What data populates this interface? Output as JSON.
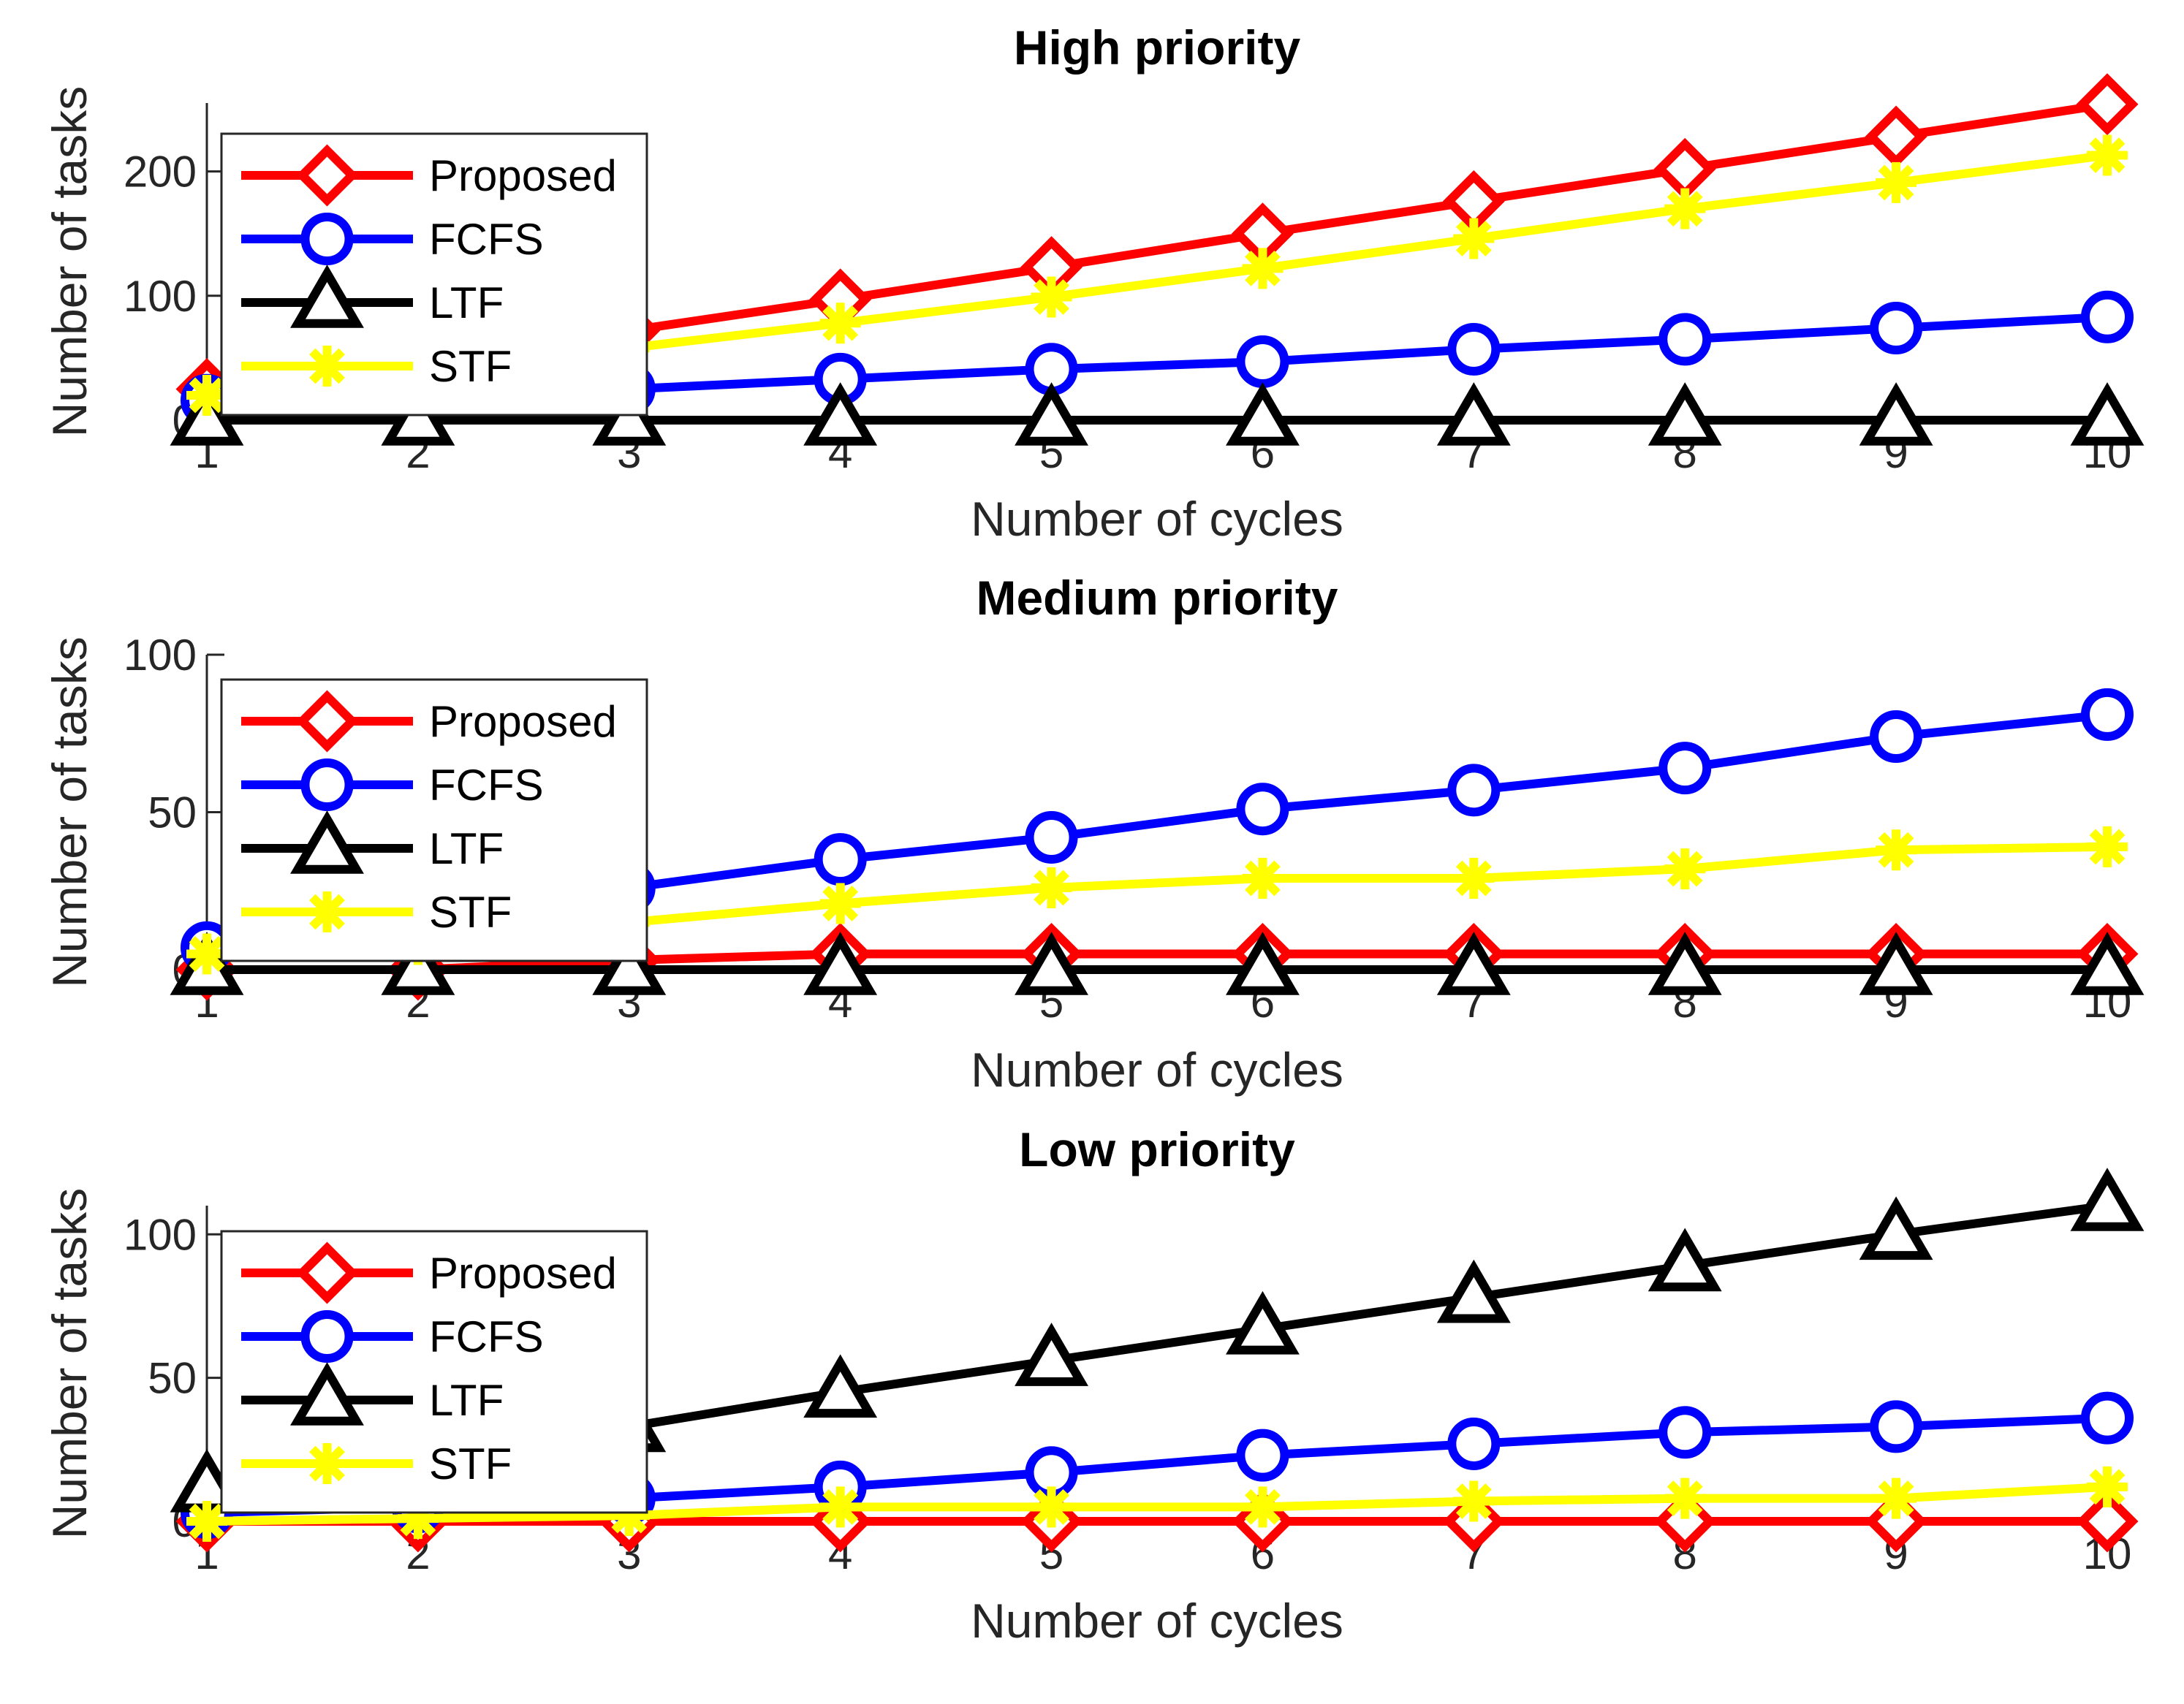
{
  "chart_data": [
    {
      "type": "line",
      "title": "High priority",
      "xlabel": "Number of cycles",
      "ylabel": "Number of tasks",
      "x": [
        1,
        2,
        3,
        4,
        5,
        6,
        7,
        8,
        9,
        10
      ],
      "xlim": [
        1,
        10
      ],
      "ylim": [
        0,
        255
      ],
      "yticks": [
        0,
        100,
        200
      ],
      "legend": "top-left",
      "series": [
        {
          "name": "Proposed",
          "color": "#ff0000",
          "marker": "diamond",
          "values": [
            25,
            50,
            72,
            97,
            123,
            150,
            176,
            202,
            228,
            254
          ]
        },
        {
          "name": "FCFS",
          "color": "#0000ff",
          "marker": "circle",
          "values": [
            16,
            20,
            25,
            33,
            41,
            47,
            57,
            65,
            74,
            83
          ]
        },
        {
          "name": "LTF",
          "color": "#000000",
          "marker": "triangle",
          "values": [
            0,
            0,
            0,
            0,
            0,
            0,
            0,
            0,
            0,
            0
          ]
        },
        {
          "name": "STF",
          "color": "#ffff00",
          "marker": "asterisk",
          "values": [
            20,
            40,
            58,
            78,
            99,
            122,
            146,
            170,
            191,
            213
          ]
        }
      ]
    },
    {
      "type": "line",
      "title": "Medium priority",
      "xlabel": "Number of cycles",
      "ylabel": "Number of tasks",
      "x": [
        1,
        2,
        3,
        4,
        5,
        6,
        7,
        8,
        9,
        10
      ],
      "xlim": [
        1,
        10
      ],
      "ylim": [
        0,
        100
      ],
      "yticks": [
        0,
        50,
        100
      ],
      "legend": "top-left",
      "series": [
        {
          "name": "Proposed",
          "color": "#ff0000",
          "marker": "diamond",
          "values": [
            0,
            0,
            3,
            5,
            5,
            5,
            5,
            5,
            5,
            5
          ]
        },
        {
          "name": "FCFS",
          "color": "#0000ff",
          "marker": "circle",
          "values": [
            7,
            15,
            26,
            35,
            42,
            51,
            57,
            64,
            74,
            81
          ]
        },
        {
          "name": "LTF",
          "color": "#000000",
          "marker": "triangle",
          "values": [
            0,
            0,
            0,
            0,
            0,
            0,
            0,
            0,
            0,
            0
          ]
        },
        {
          "name": "STF",
          "color": "#ffff00",
          "marker": "asterisk",
          "values": [
            5,
            8,
            15,
            21,
            26,
            29,
            29,
            32,
            38,
            39
          ]
        }
      ]
    },
    {
      "type": "line",
      "title": "Low priority",
      "xlabel": "Number of cycles",
      "ylabel": "Number of tasks",
      "x": [
        1,
        2,
        3,
        4,
        5,
        6,
        7,
        8,
        9,
        10
      ],
      "xlim": [
        1,
        10
      ],
      "ylim": [
        0,
        110
      ],
      "yticks": [
        0,
        50,
        100
      ],
      "legend": "top-left",
      "series": [
        {
          "name": "Proposed",
          "color": "#ff0000",
          "marker": "diamond",
          "values": [
            0,
            0,
            0,
            0,
            0,
            0,
            0,
            0,
            0,
            0
          ]
        },
        {
          "name": "FCFS",
          "color": "#0000ff",
          "marker": "circle",
          "values": [
            3,
            5,
            8,
            12,
            17,
            23,
            27,
            31,
            33,
            36
          ]
        },
        {
          "name": "LTF",
          "color": "#000000",
          "marker": "triangle",
          "values": [
            12,
            22,
            33,
            45,
            56,
            67,
            78,
            89,
            100,
            110
          ]
        },
        {
          "name": "STF",
          "color": "#ffff00",
          "marker": "asterisk",
          "values": [
            0,
            1,
            2,
            5,
            5,
            5,
            7,
            8,
            8,
            12
          ]
        }
      ]
    }
  ]
}
